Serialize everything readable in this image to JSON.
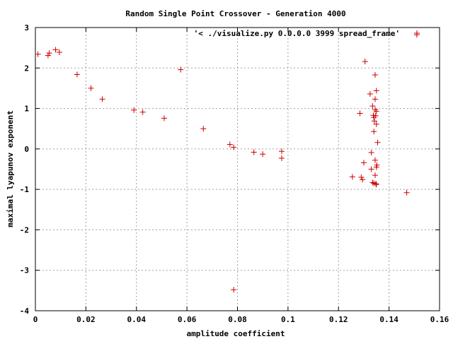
{
  "chart_data": {
    "type": "scatter",
    "title": "Random Single Point Crossover - Generation 4000",
    "xlabel": "amplitude coefficient",
    "ylabel": "maximal lyapunov exponent",
    "xlim": [
      0,
      0.16
    ],
    "ylim": [
      -4,
      3
    ],
    "x_ticks": [
      "0",
      "0.02",
      "0.04",
      "0.06",
      "0.08",
      "0.1",
      "0.12",
      "0.14",
      "0.16"
    ],
    "y_ticks": [
      "-4",
      "-3",
      "-2",
      "-1",
      "0",
      "1",
      "2",
      "3"
    ],
    "grid": true,
    "legend_position": "top-right",
    "series": [
      {
        "name": "'< ./visualize.py 0.0.0.0 3999 spread_frame'",
        "color": "#cc0000",
        "marker": "plus",
        "points": [
          [
            0.001,
            2.34
          ],
          [
            0.005,
            2.31
          ],
          [
            0.0055,
            2.37
          ],
          [
            0.008,
            2.45
          ],
          [
            0.0095,
            2.39
          ],
          [
            0.0165,
            1.84
          ],
          [
            0.022,
            1.5
          ],
          [
            0.0265,
            1.23
          ],
          [
            0.039,
            0.96
          ],
          [
            0.0425,
            0.91
          ],
          [
            0.051,
            0.76
          ],
          [
            0.0575,
            1.96
          ],
          [
            0.0665,
            0.5
          ],
          [
            0.077,
            0.11
          ],
          [
            0.0785,
            0.04
          ],
          [
            0.0865,
            -0.08
          ],
          [
            0.09,
            -0.13
          ],
          [
            0.0975,
            -0.06
          ],
          [
            0.0975,
            -0.23
          ],
          [
            0.0785,
            -3.48
          ],
          [
            0.1255,
            -0.69
          ],
          [
            0.1285,
            0.88
          ],
          [
            0.129,
            -0.7
          ],
          [
            0.1295,
            -0.76
          ],
          [
            0.13,
            -0.34
          ],
          [
            0.1305,
            2.16
          ],
          [
            0.1325,
            1.36
          ],
          [
            0.133,
            -0.09
          ],
          [
            0.133,
            -0.5
          ],
          [
            0.1335,
            1.06
          ],
          [
            0.1335,
            -0.83
          ],
          [
            0.1338,
            0.83
          ],
          [
            0.134,
            0.78
          ],
          [
            0.134,
            -0.85
          ],
          [
            0.134,
            0.43
          ],
          [
            0.1342,
            0.69
          ],
          [
            0.1345,
            0.97
          ],
          [
            0.1345,
            1.83
          ],
          [
            0.1345,
            1.23
          ],
          [
            0.1345,
            -0.28
          ],
          [
            0.1345,
            -0.65
          ],
          [
            0.1347,
            0.82
          ],
          [
            0.1348,
            -0.86
          ],
          [
            0.135,
            1.44
          ],
          [
            0.135,
            0.93
          ],
          [
            0.135,
            0.61
          ],
          [
            0.135,
            -0.45
          ],
          [
            0.135,
            -0.88
          ],
          [
            0.1352,
            -0.4
          ],
          [
            0.1355,
            0.16
          ],
          [
            0.147,
            -1.08
          ],
          [
            0.151,
            2.82
          ]
        ]
      }
    ]
  }
}
